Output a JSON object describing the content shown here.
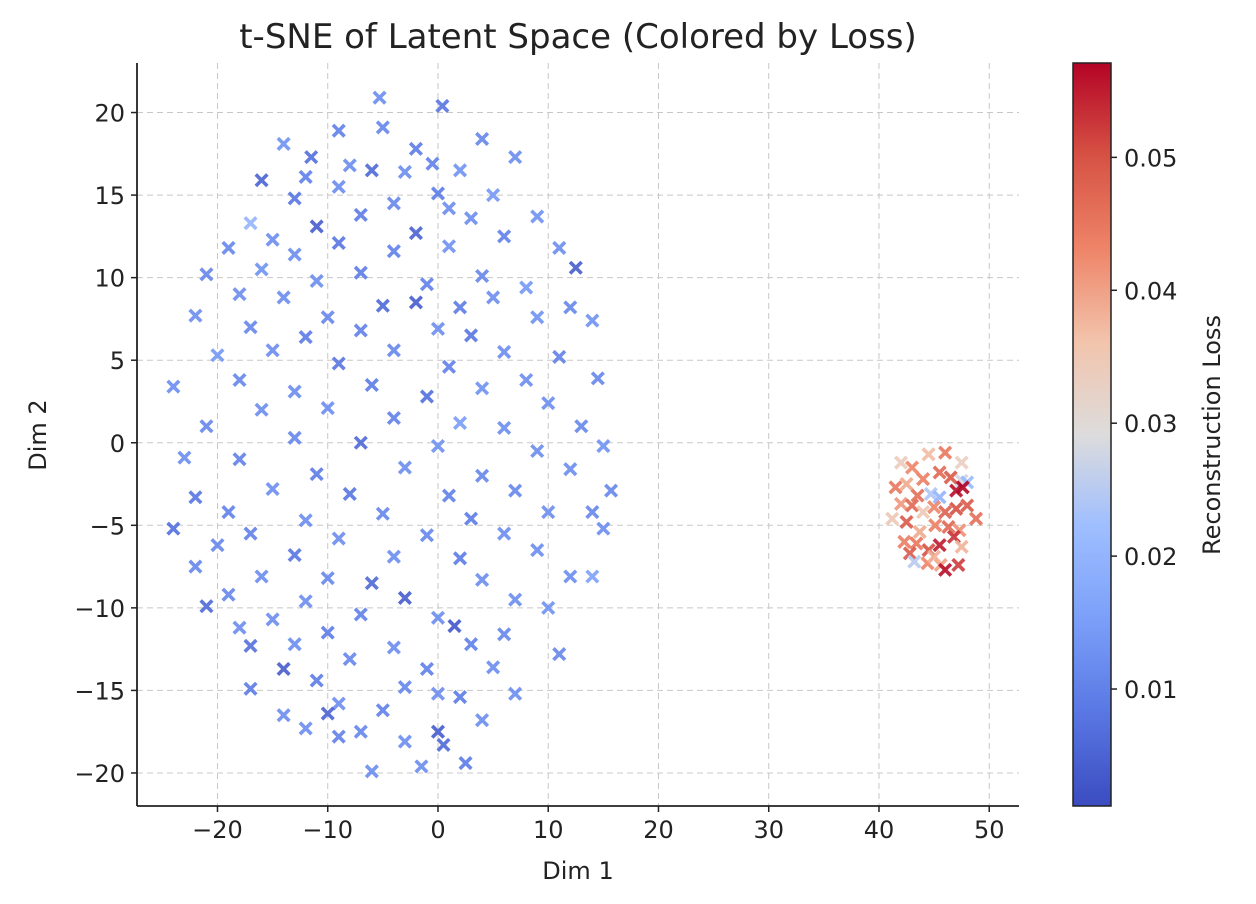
{
  "chart_data": {
    "type": "scatter",
    "title": "t-SNE of Latent Space (Colored by Loss)",
    "xlabel": "Dim 1",
    "ylabel": "Dim 2",
    "xlim": [
      -27.3,
      52.7
    ],
    "ylim": [
      -22.0,
      23.0
    ],
    "xticks": [
      -20,
      -10,
      0,
      10,
      20,
      30,
      40,
      50
    ],
    "yticks": [
      -20,
      -15,
      -10,
      -5,
      0,
      5,
      10,
      15,
      20
    ],
    "xtick_labels": [
      "−20",
      "−10",
      "0",
      "10",
      "20",
      "30",
      "40",
      "50"
    ],
    "ytick_labels": [
      "−20",
      "−15",
      "−10",
      "−5",
      "0",
      "5",
      "10",
      "15",
      "20"
    ],
    "grid": true,
    "marker": "x",
    "colormap": "coolwarm",
    "colorbar": {
      "label": "Reconstruction Loss",
      "range": [
        0.0012,
        0.0571
      ],
      "ticks": [
        0.01,
        0.02,
        0.03,
        0.04,
        0.05
      ],
      "tick_labels": [
        "0.01",
        "0.02",
        "0.03",
        "0.04",
        "0.05"
      ]
    },
    "points_note_columns": [
      "dim1",
      "dim2",
      "loss"
    ],
    "points": [
      [
        -5.3,
        20.9,
        0.012
      ],
      [
        0.4,
        20.4,
        0.008
      ],
      [
        -5,
        19.1,
        0.011
      ],
      [
        -9,
        18.9,
        0.01
      ],
      [
        4,
        18.4,
        0.011
      ],
      [
        -14,
        18.1,
        0.013
      ],
      [
        -2,
        17.8,
        0.009
      ],
      [
        7,
        17.3,
        0.012
      ],
      [
        -11.5,
        17.3,
        0.007
      ],
      [
        -8,
        16.8,
        0.012
      ],
      [
        -0.5,
        16.9,
        0.01
      ],
      [
        2,
        16.5,
        0.013
      ],
      [
        -3,
        16.4,
        0.012
      ],
      [
        -6,
        16.5,
        0.006
      ],
      [
        -16,
        15.9,
        0.005
      ],
      [
        -12,
        16.1,
        0.01
      ],
      [
        0,
        15.1,
        0.009
      ],
      [
        -9,
        15.5,
        0.012
      ],
      [
        -13,
        14.8,
        0.008
      ],
      [
        5,
        15,
        0.014
      ],
      [
        -4,
        14.5,
        0.011
      ],
      [
        1,
        14.2,
        0.012
      ],
      [
        9,
        13.7,
        0.013
      ],
      [
        -17,
        13.3,
        0.02
      ],
      [
        -7,
        13.8,
        0.009
      ],
      [
        -11,
        13.1,
        0.004
      ],
      [
        3,
        13.6,
        0.012
      ],
      [
        -15,
        12.3,
        0.012
      ],
      [
        -2,
        12.7,
        0.005
      ],
      [
        6,
        12.5,
        0.01
      ],
      [
        -19,
        11.8,
        0.011
      ],
      [
        -9,
        12.1,
        0.008
      ],
      [
        11,
        11.8,
        0.012
      ],
      [
        -4,
        11.6,
        0.01
      ],
      [
        1,
        11.9,
        0.013
      ],
      [
        -13,
        11.4,
        0.012
      ],
      [
        -21,
        10.2,
        0.011
      ],
      [
        -16,
        10.5,
        0.013
      ],
      [
        -7,
        10.3,
        0.009
      ],
      [
        4,
        10.1,
        0.011
      ],
      [
        12.5,
        10.6,
        0.004
      ],
      [
        -11,
        9.8,
        0.012
      ],
      [
        -1,
        9.6,
        0.01
      ],
      [
        8,
        9.4,
        0.014
      ],
      [
        -18,
        9,
        0.012
      ],
      [
        -14,
        8.8,
        0.012
      ],
      [
        -5,
        8.3,
        0.006
      ],
      [
        -2,
        8.5,
        0.004
      ],
      [
        2,
        8.2,
        0.009
      ],
      [
        5,
        8.8,
        0.012
      ],
      [
        12,
        8.2,
        0.011
      ],
      [
        -22,
        7.7,
        0.012
      ],
      [
        -10,
        7.6,
        0.011
      ],
      [
        9,
        7.6,
        0.013
      ],
      [
        -17,
        7,
        0.011
      ],
      [
        -7,
        6.8,
        0.01
      ],
      [
        0,
        6.9,
        0.012
      ],
      [
        3,
        6.5,
        0.008
      ],
      [
        -12,
        6.4,
        0.009
      ],
      [
        14,
        7.4,
        0.013
      ],
      [
        -20,
        5.3,
        0.014
      ],
      [
        -15,
        5.6,
        0.012
      ],
      [
        -4,
        5.6,
        0.011
      ],
      [
        6,
        5.5,
        0.012
      ],
      [
        11,
        5.2,
        0.01
      ],
      [
        -9,
        4.8,
        0.008
      ],
      [
        1,
        4.6,
        0.01
      ],
      [
        -24,
        3.4,
        0.012
      ],
      [
        -18,
        3.8,
        0.011
      ],
      [
        -13,
        3.1,
        0.012
      ],
      [
        -6,
        3.5,
        0.009
      ],
      [
        4,
        3.3,
        0.013
      ],
      [
        8,
        3.8,
        0.012
      ],
      [
        14.5,
        3.9,
        0.011
      ],
      [
        -1,
        2.8,
        0.007
      ],
      [
        -10,
        2.1,
        0.012
      ],
      [
        -16,
        2,
        0.012
      ],
      [
        10,
        2.4,
        0.012
      ],
      [
        -21,
        1,
        0.011
      ],
      [
        -4,
        1.5,
        0.01
      ],
      [
        2,
        1.2,
        0.015
      ],
      [
        6,
        0.9,
        0.012
      ],
      [
        13,
        1,
        0.011
      ],
      [
        -13,
        0.3,
        0.011
      ],
      [
        -7,
        0,
        0.006
      ],
      [
        0,
        -0.2,
        0.013
      ],
      [
        -23,
        -0.9,
        0.012
      ],
      [
        -18,
        -1,
        0.01
      ],
      [
        9,
        -0.5,
        0.012
      ],
      [
        15,
        -0.2,
        0.013
      ],
      [
        -11,
        -1.9,
        0.009
      ],
      [
        -3,
        -1.5,
        0.012
      ],
      [
        4,
        -2,
        0.011
      ],
      [
        12,
        -1.6,
        0.012
      ],
      [
        -15,
        -2.8,
        0.012
      ],
      [
        -8,
        -3.1,
        0.008
      ],
      [
        1,
        -3.2,
        0.01
      ],
      [
        7,
        -2.9,
        0.011
      ],
      [
        15.7,
        -2.9,
        0.011
      ],
      [
        -22,
        -3.3,
        0.008
      ],
      [
        -19,
        -4.2,
        0.01
      ],
      [
        -12,
        -4.7,
        0.012
      ],
      [
        -5,
        -4.3,
        0.011
      ],
      [
        3,
        -4.6,
        0.009
      ],
      [
        10,
        -4.2,
        0.012
      ],
      [
        14,
        -4.2,
        0.011
      ],
      [
        -24,
        -5.2,
        0.007
      ],
      [
        -17,
        -5.5,
        0.01
      ],
      [
        -9,
        -5.8,
        0.012
      ],
      [
        -1,
        -5.6,
        0.011
      ],
      [
        6,
        -5.5,
        0.012
      ],
      [
        15,
        -5.2,
        0.012
      ],
      [
        -20,
        -6.2,
        0.011
      ],
      [
        -13,
        -6.8,
        0.008
      ],
      [
        -4,
        -6.9,
        0.012
      ],
      [
        2,
        -7,
        0.009
      ],
      [
        9,
        -6.5,
        0.012
      ],
      [
        -22,
        -7.5,
        0.011
      ],
      [
        -16,
        -8.1,
        0.012
      ],
      [
        -10,
        -8.2,
        0.011
      ],
      [
        -6,
        -8.5,
        0.006
      ],
      [
        4,
        -8.3,
        0.012
      ],
      [
        12,
        -8.1,
        0.012
      ],
      [
        14,
        -8.1,
        0.016
      ],
      [
        -19,
        -9.2,
        0.011
      ],
      [
        -12,
        -9.6,
        0.012
      ],
      [
        -3,
        -9.4,
        0.004
      ],
      [
        7,
        -9.5,
        0.012
      ],
      [
        -21,
        -9.9,
        0.006
      ],
      [
        -15,
        -10.7,
        0.012
      ],
      [
        -7,
        -10.4,
        0.01
      ],
      [
        0,
        -10.6,
        0.012
      ],
      [
        10,
        -10,
        0.013
      ],
      [
        -18,
        -11.2,
        0.012
      ],
      [
        -10,
        -11.5,
        0.009
      ],
      [
        1.5,
        -11.1,
        0.003
      ],
      [
        6,
        -11.6,
        0.011
      ],
      [
        -13,
        -12.2,
        0.012
      ],
      [
        -4,
        -12.4,
        0.012
      ],
      [
        3,
        -12.2,
        0.01
      ],
      [
        11,
        -12.8,
        0.011
      ],
      [
        -17,
        -12.3,
        0.007
      ],
      [
        -8,
        -13.1,
        0.011
      ],
      [
        -1,
        -13.7,
        0.01
      ],
      [
        -14,
        -13.7,
        0.004
      ],
      [
        5,
        -13.6,
        0.012
      ],
      [
        -11,
        -14.4,
        0.009
      ],
      [
        -3,
        -14.8,
        0.011
      ],
      [
        0,
        -15.2,
        0.012
      ],
      [
        -17,
        -14.9,
        0.009
      ],
      [
        7,
        -15.2,
        0.012
      ],
      [
        -9,
        -15.8,
        0.012
      ],
      [
        2,
        -15.4,
        0.009
      ],
      [
        -14,
        -16.5,
        0.012
      ],
      [
        -5,
        -16.2,
        0.01
      ],
      [
        4,
        -16.8,
        0.012
      ],
      [
        -10,
        -16.4,
        0.005
      ],
      [
        -12,
        -17.3,
        0.012
      ],
      [
        -7,
        -17.5,
        0.011
      ],
      [
        0,
        -17.5,
        0.004
      ],
      [
        -3,
        -18.1,
        0.012
      ],
      [
        -9,
        -17.8,
        0.01
      ],
      [
        0.5,
        -18.3,
        0.006
      ],
      [
        -1.5,
        -19.6,
        0.012
      ],
      [
        2.5,
        -19.4,
        0.009
      ],
      [
        -6,
        -19.9,
        0.012
      ],
      [
        43,
        -1.5,
        0.043
      ],
      [
        44.5,
        -0.7,
        0.037
      ],
      [
        46,
        -0.6,
        0.045
      ],
      [
        47.5,
        -1.2,
        0.033
      ],
      [
        42,
        -1.2,
        0.034
      ],
      [
        41.5,
        -2.7,
        0.045
      ],
      [
        42.5,
        -2.5,
        0.039
      ],
      [
        44,
        -2.2,
        0.044
      ],
      [
        45.5,
        -1.8,
        0.047
      ],
      [
        46.5,
        -2.1,
        0.049
      ],
      [
        47.5,
        -2.3,
        0.028
      ],
      [
        48,
        -2.4,
        0.021
      ],
      [
        43.5,
        -3.2,
        0.046
      ],
      [
        44.7,
        -3.1,
        0.024
      ],
      [
        45.5,
        -3.3,
        0.02
      ],
      [
        47,
        -2.9,
        0.056
      ],
      [
        47.6,
        -2.7,
        0.057
      ],
      [
        42,
        -3.7,
        0.041
      ],
      [
        43,
        -3.8,
        0.047
      ],
      [
        44,
        -4.2,
        0.035
      ],
      [
        45,
        -3.9,
        0.043
      ],
      [
        46,
        -4.2,
        0.048
      ],
      [
        47,
        -4,
        0.05
      ],
      [
        48,
        -3.8,
        0.049
      ],
      [
        41.2,
        -4.6,
        0.035
      ],
      [
        42.5,
        -4.8,
        0.049
      ],
      [
        43.7,
        -5.4,
        0.039
      ],
      [
        45.1,
        -5,
        0.044
      ],
      [
        46.3,
        -5.1,
        0.047
      ],
      [
        47.3,
        -5.3,
        0.042
      ],
      [
        48.8,
        -4.6,
        0.046
      ],
      [
        42.3,
        -6,
        0.044
      ],
      [
        43.4,
        -6.1,
        0.045
      ],
      [
        44.5,
        -6.5,
        0.05
      ],
      [
        45.5,
        -6.2,
        0.055
      ],
      [
        46.8,
        -5.7,
        0.053
      ],
      [
        42.8,
        -6.7,
        0.049
      ],
      [
        43.2,
        -7.2,
        0.025
      ],
      [
        44.4,
        -7.3,
        0.043
      ],
      [
        45.6,
        -7.4,
        0.04
      ],
      [
        47.2,
        -7.4,
        0.052
      ],
      [
        46,
        -7.7,
        0.056
      ],
      [
        45,
        -6.9,
        0.038
      ],
      [
        47.5,
        -6.3,
        0.038
      ]
    ]
  }
}
